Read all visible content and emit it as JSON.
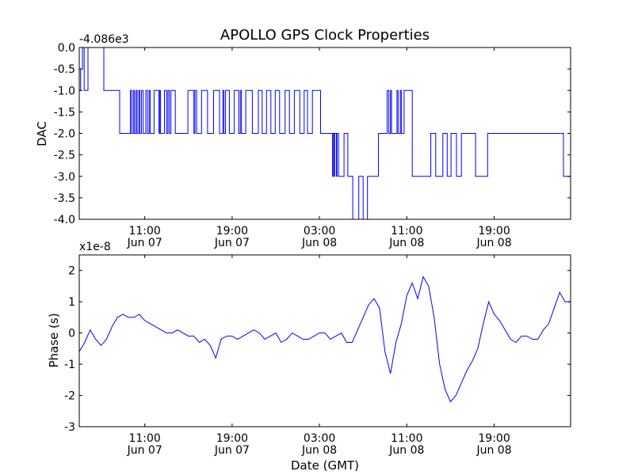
{
  "title": "APOLLO GPS Clock Properties",
  "chart_data": [
    {
      "type": "line",
      "offset_label": "-4.086e3",
      "ylabel": "DAC",
      "xlabel": "",
      "ylim": [
        -4.0,
        0.0
      ],
      "yticks": [
        "-4.0",
        "-3.5",
        "-3.0",
        "-2.5",
        "-2.0",
        "-1.5",
        "-1.0",
        "-0.5",
        "0.0"
      ],
      "xlim_hours": [
        5.0,
        50.0
      ],
      "xtick_hours": [
        11,
        19,
        27,
        35,
        43
      ],
      "xtick_time": [
        "11:00",
        "19:00",
        "03:00",
        "11:00",
        "19:00"
      ],
      "xtick_date": [
        "Jun 07",
        "Jun 07",
        "Jun 08",
        "Jun 08",
        "Jun 08"
      ],
      "series_color": "#0000ff",
      "series": [
        {
          "values_x_hours": [
            5.0,
            5.05,
            5.12,
            5.22,
            5.3,
            5.35,
            5.45,
            5.6,
            5.8,
            6.2,
            7.0,
            7.25,
            7.45,
            7.6,
            8.5,
            8.7,
            9.5,
            9.68,
            9.8,
            9.95,
            10.05,
            10.2,
            10.3,
            10.45,
            10.55,
            10.7,
            10.85,
            11.0,
            11.1,
            11.25,
            11.4,
            11.5,
            11.75,
            11.85,
            12.2,
            12.3,
            12.35,
            12.45,
            12.7,
            12.8,
            13.0,
            13.12,
            13.25,
            13.4,
            13.7,
            13.8,
            14.8,
            14.95,
            15.4,
            15.5,
            15.6,
            15.75,
            16.1,
            16.2,
            16.6,
            16.75,
            17.2,
            17.3,
            17.75,
            17.85,
            18.0,
            18.15,
            18.25,
            18.4,
            18.6,
            18.75,
            19.0,
            19.2,
            19.5,
            19.6,
            19.75,
            19.85,
            20.1,
            20.25,
            20.7,
            20.85,
            21.3,
            21.4,
            21.6,
            21.75,
            22.0,
            22.15,
            22.4,
            22.55,
            22.8,
            22.95,
            23.2,
            23.35,
            23.7,
            23.85,
            24.1,
            24.25,
            24.5,
            24.7,
            25.1,
            25.2,
            25.5,
            25.6,
            25.8,
            25.9,
            26.2,
            26.35,
            27.0,
            27.1,
            28.1,
            28.2,
            28.25,
            28.35,
            28.4,
            28.55,
            28.6,
            28.75,
            29.1,
            29.25,
            29.5,
            29.6,
            29.95,
            30.05,
            30.4,
            30.6,
            30.8,
            31.0,
            31.2,
            31.4,
            32.2,
            32.4,
            33.0,
            33.2,
            33.35,
            33.5,
            33.6,
            33.85,
            34.1,
            34.2,
            34.4,
            34.5,
            34.65,
            34.75,
            35.3,
            35.5,
            37.0,
            37.2,
            37.5,
            37.65,
            38.2,
            38.3,
            38.6,
            38.7,
            38.9,
            39.05,
            39.4,
            39.55,
            39.8,
            40.0,
            41.0,
            41.3,
            42.2,
            42.4,
            45.7,
            49.35,
            49.6,
            50.0
          ],
          "values": [
            -1.0,
            -1.0,
            -0.5,
            -0.5,
            0.0,
            0.0,
            -1.0,
            -1.0,
            0.0,
            0.0,
            0.0,
            -1.0,
            -1.0,
            -1.0,
            -1.0,
            -2.0,
            -2.0,
            -1.0,
            -2.0,
            -1.0,
            -2.0,
            -1.0,
            -2.0,
            -1.0,
            -2.0,
            -1.0,
            -2.0,
            -2.0,
            -1.0,
            -2.0,
            -1.0,
            -2.0,
            -2.0,
            -1.0,
            -1.0,
            -2.0,
            -1.0,
            -2.0,
            -2.0,
            -1.0,
            -2.0,
            -1.0,
            -2.0,
            -1.0,
            -1.0,
            -2.0,
            -2.0,
            -1.0,
            -1.0,
            -2.0,
            -1.0,
            -2.0,
            -2.0,
            -1.0,
            -1.0,
            -2.0,
            -2.0,
            -1.0,
            -1.0,
            -2.0,
            -2.0,
            -1.0,
            -2.0,
            -1.0,
            -1.0,
            -2.0,
            -2.0,
            -1.0,
            -1.0,
            -2.0,
            -1.0,
            -2.0,
            -2.0,
            -1.0,
            -1.0,
            -2.0,
            -2.0,
            -1.0,
            -1.0,
            -2.0,
            -2.0,
            -1.0,
            -1.0,
            -2.0,
            -2.0,
            -1.0,
            -1.0,
            -2.0,
            -2.0,
            -1.0,
            -1.0,
            -2.0,
            -2.0,
            -1.0,
            -1.0,
            -2.0,
            -2.0,
            -1.0,
            -1.0,
            -2.0,
            -2.0,
            -1.0,
            -1.0,
            -2.0,
            -2.0,
            -3.0,
            -2.0,
            -3.0,
            -2.0,
            -3.0,
            -2.0,
            -3.0,
            -3.0,
            -2.0,
            -2.0,
            -3.0,
            -3.0,
            -4.0,
            -4.0,
            -3.0,
            -3.0,
            -4.0,
            -4.0,
            -3.0,
            -3.0,
            -2.0,
            -2.0,
            -1.0,
            -2.0,
            -1.0,
            -2.0,
            -2.0,
            -1.0,
            -2.0,
            -1.0,
            -2.0,
            -2.0,
            -1.0,
            -1.0,
            -3.0,
            -3.0,
            -2.0,
            -2.0,
            -3.0,
            -3.0,
            -2.0,
            -2.0,
            -3.0,
            -3.0,
            -2.0,
            -2.0,
            -3.0,
            -3.0,
            -2.0,
            -2.0,
            -3.0,
            -3.0,
            -2.0,
            -2.0,
            -3.0,
            -3.0,
            -4.0,
            -4.0
          ]
        }
      ]
    },
    {
      "type": "line",
      "offset_label": "x1e-8",
      "ylabel": "Phase (s)",
      "xlabel": "Date (GMT)",
      "ylim": [
        -3.0,
        2.5
      ],
      "yticks": [
        "-3",
        "-2",
        "-1",
        "0",
        "1",
        "2"
      ],
      "xlim_hours": [
        5.0,
        50.0
      ],
      "xtick_hours": [
        11,
        19,
        27,
        35,
        43
      ],
      "xtick_time": [
        "11:00",
        "19:00",
        "03:00",
        "11:00",
        "19:00"
      ],
      "xtick_date": [
        "Jun 07",
        "Jun 07",
        "Jun 08",
        "Jun 08",
        "Jun 08"
      ],
      "series_color": "#0000ff",
      "series": [
        {
          "values_x_hours": [
            5.0,
            5.5,
            6.0,
            6.5,
            7.0,
            7.5,
            8.0,
            8.5,
            9.0,
            9.5,
            10.0,
            10.5,
            11.0,
            11.5,
            12.0,
            12.5,
            13.0,
            13.5,
            14.0,
            14.5,
            15.0,
            15.5,
            16.0,
            16.5,
            17.0,
            17.5,
            18.0,
            18.5,
            19.0,
            19.5,
            20.0,
            20.5,
            21.0,
            21.5,
            22.0,
            22.5,
            23.0,
            23.5,
            24.0,
            24.5,
            25.0,
            25.5,
            26.0,
            26.5,
            27.0,
            27.5,
            28.0,
            28.5,
            29.0,
            29.5,
            30.0,
            30.5,
            31.0,
            31.5,
            32.0,
            32.5,
            33.0,
            33.5,
            34.0,
            34.5,
            35.0,
            35.5,
            36.0,
            36.5,
            37.0,
            37.5,
            38.0,
            38.5,
            39.0,
            39.5,
            40.0,
            40.5,
            41.0,
            41.5,
            42.0,
            42.5,
            43.0,
            43.5,
            44.0,
            44.5,
            45.0,
            45.5,
            46.0,
            46.5,
            47.0,
            47.5,
            48.0,
            48.5,
            49.0,
            49.5,
            50.0
          ],
          "values": [
            -0.6,
            -0.3,
            0.1,
            -0.2,
            -0.4,
            -0.2,
            0.2,
            0.5,
            0.6,
            0.5,
            0.5,
            0.6,
            0.4,
            0.3,
            0.2,
            0.1,
            0.0,
            0.0,
            0.1,
            0.0,
            -0.1,
            -0.1,
            -0.3,
            -0.2,
            -0.4,
            -0.8,
            -0.2,
            -0.1,
            -0.1,
            -0.2,
            -0.1,
            0.0,
            0.1,
            0.0,
            -0.2,
            -0.1,
            0.0,
            -0.3,
            -0.2,
            0.0,
            -0.1,
            -0.2,
            -0.2,
            -0.1,
            0.0,
            0.0,
            -0.2,
            -0.1,
            0.0,
            -0.3,
            -0.3,
            0.1,
            0.5,
            0.9,
            1.1,
            0.8,
            -0.6,
            -1.3,
            -0.3,
            0.3,
            1.2,
            1.6,
            1.1,
            1.8,
            1.5,
            0.5,
            -1.0,
            -1.8,
            -2.2,
            -2.0,
            -1.6,
            -1.2,
            -0.9,
            -0.5,
            0.3,
            1.0,
            0.6,
            0.4,
            0.1,
            -0.2,
            -0.3,
            -0.1,
            -0.1,
            -0.2,
            -0.2,
            0.1,
            0.3,
            0.8,
            1.3,
            1.0,
            1.0
          ]
        }
      ]
    }
  ]
}
